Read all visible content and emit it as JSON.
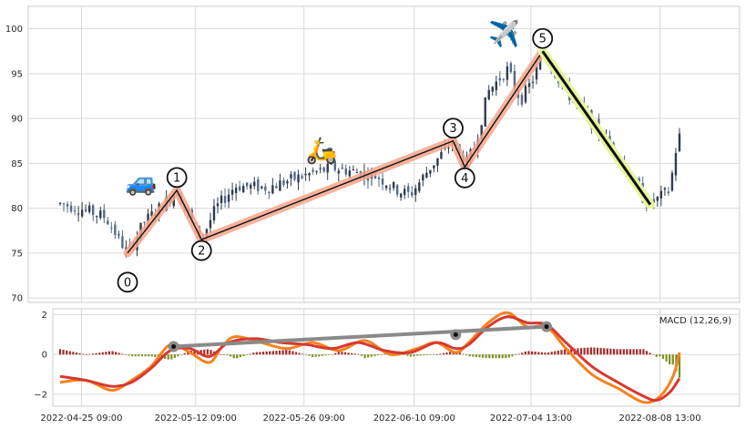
{
  "chart_data": {
    "type": "candlestick",
    "colors": {
      "up": "#2f3b4f",
      "down": "#556a88",
      "wave_highlight": "#f4a58a",
      "wave_line": "#111111",
      "correction_highlight": "#e6f5a0",
      "macd_line": "#d63a2f",
      "signal_line": "#f58220",
      "hist_pos": "#a32a2a",
      "hist_neg": "#7b8f1e",
      "trendline": "#8a8a8a"
    },
    "price_panel": {
      "y_ticks": [
        "70",
        "75",
        "80",
        "85",
        "90",
        "95",
        "100"
      ],
      "ylim": [
        69.5,
        102.5
      ],
      "xlim": [
        0,
        100
      ],
      "wave_points": [
        {
          "label": "0",
          "x": 10.4,
          "y": 75.0
        },
        {
          "label": "1",
          "x": 18.0,
          "y": 82.0
        },
        {
          "label": "2",
          "x": 21.8,
          "y": 76.5
        },
        {
          "label": "3",
          "x": 60.6,
          "y": 87.5
        },
        {
          "label": "4",
          "x": 62.4,
          "y": 84.6
        },
        {
          "label": "5",
          "x": 74.4,
          "y": 97.5
        }
      ],
      "correction": {
        "x1": 74.4,
        "y1": 97.5,
        "x2": 91.0,
        "y2": 80.4
      },
      "icons": [
        {
          "name": "car-icon",
          "glyph": "🚙",
          "x": 12.5,
          "y": 82.0
        },
        {
          "name": "scooter-icon",
          "glyph": "🛵",
          "x": 40.3,
          "y": 85.5
        },
        {
          "name": "airplane-icon",
          "glyph": "✈️",
          "x": 68.5,
          "y": 98.5
        }
      ],
      "anchors": [
        {
          "x": 0,
          "y": 80.5
        },
        {
          "x": 3,
          "y": 80.0
        },
        {
          "x": 7,
          "y": 79.0
        },
        {
          "x": 10.4,
          "y": 75.0
        },
        {
          "x": 13,
          "y": 78.5
        },
        {
          "x": 16,
          "y": 80.5
        },
        {
          "x": 18,
          "y": 82.0
        },
        {
          "x": 20,
          "y": 79.0
        },
        {
          "x": 21.8,
          "y": 76.5
        },
        {
          "x": 24,
          "y": 80.0
        },
        {
          "x": 27,
          "y": 82.5
        },
        {
          "x": 32,
          "y": 82.3
        },
        {
          "x": 37,
          "y": 83.5
        },
        {
          "x": 42,
          "y": 84.5
        },
        {
          "x": 46,
          "y": 84.0
        },
        {
          "x": 49,
          "y": 83.5
        },
        {
          "x": 52,
          "y": 82.0
        },
        {
          "x": 54,
          "y": 81.5
        },
        {
          "x": 57,
          "y": 84.5
        },
        {
          "x": 60.6,
          "y": 87.5
        },
        {
          "x": 62.4,
          "y": 84.6
        },
        {
          "x": 64,
          "y": 87.0
        },
        {
          "x": 66,
          "y": 93.0
        },
        {
          "x": 69,
          "y": 95.5
        },
        {
          "x": 71,
          "y": 92.0
        },
        {
          "x": 73,
          "y": 94.5
        },
        {
          "x": 74.4,
          "y": 97.5
        },
        {
          "x": 78,
          "y": 93.0
        },
        {
          "x": 82,
          "y": 89.5
        },
        {
          "x": 86,
          "y": 86.0
        },
        {
          "x": 90,
          "y": 81.0
        },
        {
          "x": 91,
          "y": 80.4
        },
        {
          "x": 93,
          "y": 81.5
        },
        {
          "x": 94,
          "y": 82.0
        },
        {
          "x": 94.6,
          "y": 85.0
        },
        {
          "x": 95.3,
          "y": 88.0
        }
      ]
    },
    "macd_panel": {
      "label": "MACD (12,26,9)",
      "y_ticks": [
        "−2",
        "0",
        "2"
      ],
      "ylim": [
        -2.6,
        2.3
      ],
      "macd_line": [
        {
          "x": 0,
          "y": -1.1
        },
        {
          "x": 4,
          "y": -1.3
        },
        {
          "x": 8,
          "y": -1.6
        },
        {
          "x": 11,
          "y": -1.4
        },
        {
          "x": 14,
          "y": -0.7
        },
        {
          "x": 17,
          "y": 0.2
        },
        {
          "x": 20,
          "y": 0.3
        },
        {
          "x": 23,
          "y": -0.1
        },
        {
          "x": 26,
          "y": 0.6
        },
        {
          "x": 30,
          "y": 0.8
        },
        {
          "x": 34,
          "y": 0.6
        },
        {
          "x": 38,
          "y": 0.5
        },
        {
          "x": 42,
          "y": 0.3
        },
        {
          "x": 46,
          "y": 0.6
        },
        {
          "x": 50,
          "y": 0.2
        },
        {
          "x": 54,
          "y": 0.1
        },
        {
          "x": 58,
          "y": 0.6
        },
        {
          "x": 61,
          "y": 0.3
        },
        {
          "x": 63,
          "y": 0.5
        },
        {
          "x": 66,
          "y": 1.4
        },
        {
          "x": 69,
          "y": 1.9
        },
        {
          "x": 72,
          "y": 1.6
        },
        {
          "x": 75,
          "y": 1.5
        },
        {
          "x": 78,
          "y": 0.6
        },
        {
          "x": 82,
          "y": -0.6
        },
        {
          "x": 86,
          "y": -1.4
        },
        {
          "x": 90,
          "y": -2.1
        },
        {
          "x": 92,
          "y": -2.3
        },
        {
          "x": 94,
          "y": -1.9
        },
        {
          "x": 95.5,
          "y": -1.2
        }
      ],
      "signal_line": [
        {
          "x": 0,
          "y": -1.4
        },
        {
          "x": 4,
          "y": -1.3
        },
        {
          "x": 8,
          "y": -1.8
        },
        {
          "x": 11,
          "y": -1.3
        },
        {
          "x": 14,
          "y": -0.6
        },
        {
          "x": 17,
          "y": 0.5
        },
        {
          "x": 20,
          "y": 0.1
        },
        {
          "x": 23,
          "y": -0.4
        },
        {
          "x": 25,
          "y": 0.4
        },
        {
          "x": 27,
          "y": 0.9
        },
        {
          "x": 31,
          "y": 0.6
        },
        {
          "x": 35,
          "y": 0.3
        },
        {
          "x": 39,
          "y": 0.6
        },
        {
          "x": 43,
          "y": 0.2
        },
        {
          "x": 47,
          "y": 0.7
        },
        {
          "x": 51,
          "y": 0.0
        },
        {
          "x": 55,
          "y": 0.3
        },
        {
          "x": 58,
          "y": 0.6
        },
        {
          "x": 61,
          "y": 0.1
        },
        {
          "x": 63,
          "y": 0.6
        },
        {
          "x": 66,
          "y": 1.6
        },
        {
          "x": 69,
          "y": 2.1
        },
        {
          "x": 72,
          "y": 1.4
        },
        {
          "x": 75,
          "y": 1.4
        },
        {
          "x": 78,
          "y": 0.3
        },
        {
          "x": 82,
          "y": -1.0
        },
        {
          "x": 86,
          "y": -1.7
        },
        {
          "x": 90,
          "y": -2.4
        },
        {
          "x": 92.5,
          "y": -2.1
        },
        {
          "x": 94.5,
          "y": -1.1
        },
        {
          "x": 95.5,
          "y": 0.1
        }
      ],
      "trendline": {
        "x1": 17.5,
        "y1": 0.4,
        "x2": 75.0,
        "y2": 1.4
      },
      "trend_points": [
        {
          "x": 17.5,
          "y": 0.4
        },
        {
          "x": 61.0,
          "y": 1.0
        },
        {
          "x": 75.0,
          "y": 1.4
        }
      ]
    },
    "x_ticks": [
      {
        "label": "2022-04-25 09:00",
        "x": 3.3
      },
      {
        "label": "2022-05-12 09:00",
        "x": 20.9
      },
      {
        "label": "2022-05-26 09:00",
        "x": 37.6
      },
      {
        "label": "2022-06-10 09:00",
        "x": 54.6
      },
      {
        "label": "2022-07-04 13:00",
        "x": 72.6
      },
      {
        "label": "2022-08-08 13:00",
        "x": 92.5
      }
    ],
    "grid": true,
    "legend": "none"
  }
}
